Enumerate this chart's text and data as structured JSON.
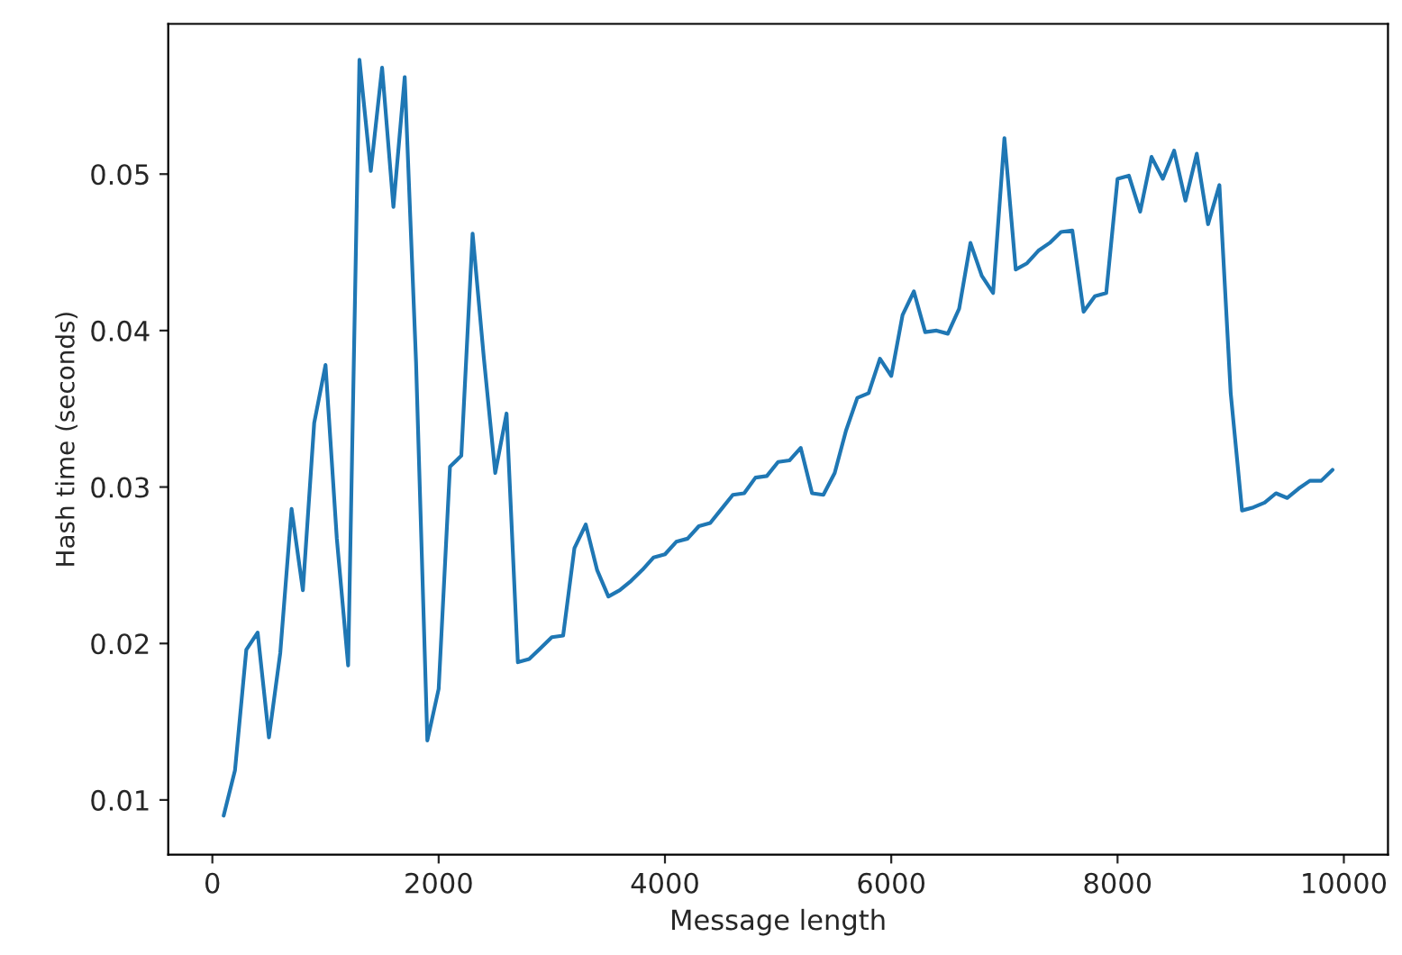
{
  "chart_data": {
    "type": "line",
    "xlabel": "Message length",
    "ylabel": "Hash time (seconds)",
    "x": [
      100,
      200,
      300,
      400,
      500,
      600,
      700,
      800,
      900,
      1000,
      1100,
      1200,
      1300,
      1400,
      1500,
      1600,
      1700,
      1800,
      1900,
      2000,
      2100,
      2200,
      2300,
      2400,
      2500,
      2600,
      2700,
      2800,
      2900,
      3000,
      3100,
      3200,
      3300,
      3400,
      3500,
      3600,
      3700,
      3800,
      3900,
      4000,
      4100,
      4200,
      4300,
      4400,
      4500,
      4600,
      4700,
      4800,
      4900,
      5000,
      5100,
      5200,
      5300,
      5400,
      5500,
      5600,
      5700,
      5800,
      5900,
      6000,
      6100,
      6200,
      6300,
      6400,
      6500,
      6600,
      6700,
      6800,
      6900,
      7000,
      7100,
      7200,
      7300,
      7400,
      7500,
      7600,
      7700,
      7800,
      7900,
      8000,
      8100,
      8200,
      8300,
      8400,
      8500,
      8600,
      8700,
      8800,
      8900,
      9000,
      9100,
      9200,
      9300,
      9400,
      9500,
      9600,
      9700,
      9800,
      9900
    ],
    "series": [
      {
        "color": "#1f77b4",
        "values": [
          0.009,
          0.0119,
          0.0196,
          0.0207,
          0.014,
          0.0194,
          0.0286,
          0.0234,
          0.0341,
          0.0378,
          0.0267,
          0.0186,
          0.0573,
          0.0502,
          0.0568,
          0.0479,
          0.0562,
          0.038,
          0.0138,
          0.0171,
          0.0313,
          0.032,
          0.0462,
          0.0382,
          0.0309,
          0.0347,
          0.0188,
          0.019,
          0.0197,
          0.0204,
          0.0205,
          0.0261,
          0.0276,
          0.0247,
          0.023,
          0.0234,
          0.024,
          0.0247,
          0.0255,
          0.0257,
          0.0265,
          0.0267,
          0.0275,
          0.0277,
          0.0286,
          0.0295,
          0.0296,
          0.0306,
          0.0307,
          0.0316,
          0.0317,
          0.0325,
          0.0296,
          0.0295,
          0.0309,
          0.0336,
          0.0357,
          0.036,
          0.0382,
          0.0371,
          0.041,
          0.0425,
          0.0399,
          0.04,
          0.0398,
          0.0414,
          0.0456,
          0.0435,
          0.0424,
          0.0523,
          0.0439,
          0.0443,
          0.0451,
          0.0456,
          0.0463,
          0.0464,
          0.0412,
          0.0422,
          0.0424,
          0.0497,
          0.0499,
          0.0476,
          0.0511,
          0.0497,
          0.0515,
          0.0483,
          0.0513,
          0.0468,
          0.0493,
          0.036,
          0.0285,
          0.0287,
          0.029,
          0.0296,
          0.0293,
          0.0299,
          0.0304,
          0.0304,
          0.0311
        ]
      }
    ],
    "xlim": [
      -390,
      10390
    ],
    "ylim": [
      0.0065,
      0.0596
    ],
    "xticks": [
      0,
      2000,
      4000,
      6000,
      8000,
      10000
    ],
    "yticks": [
      {
        "value": 0.01,
        "label": "0.01"
      },
      {
        "value": 0.02,
        "label": "0.02"
      },
      {
        "value": 0.03,
        "label": "0.03"
      },
      {
        "value": 0.04,
        "label": "0.04"
      },
      {
        "value": 0.05,
        "label": "0.05"
      }
    ],
    "line_style": "solid"
  }
}
